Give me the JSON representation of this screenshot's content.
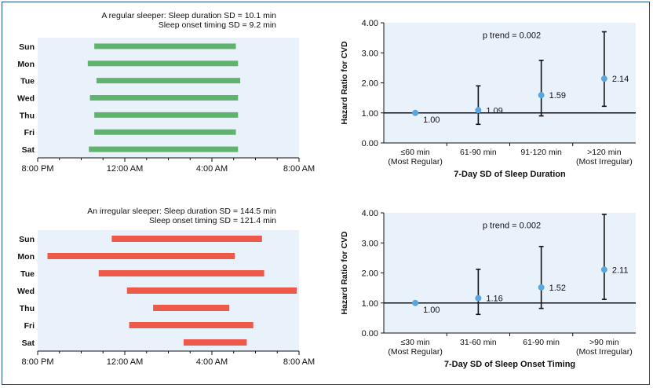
{
  "colors": {
    "panel_bg": "#e9f1fb",
    "regular_bar": "#5fb36c",
    "irregular_bar": "#ee5a4a",
    "point": "#5aa7e0",
    "frame": "#1f4e8c"
  },
  "chart_data": [
    {
      "type": "timeline",
      "title": [
        "A regular sleeper: Sleep duration SD = 10.1 min",
        "Sleep onset timing SD = 9.2 min"
      ],
      "categories": [
        "Sun",
        "Mon",
        "Tue",
        "Wed",
        "Thu",
        "Fri",
        "Sat"
      ],
      "x_ticks": [
        "8:00 PM",
        "12:00 AM",
        "4:00 AM",
        "8:00 AM"
      ],
      "x_range_hours": [
        0,
        12
      ],
      "intervals_hours_after_8pm": [
        [
          2.6,
          9.1
        ],
        [
          2.3,
          9.2
        ],
        [
          2.7,
          9.3
        ],
        [
          2.4,
          9.2
        ],
        [
          2.6,
          9.2
        ],
        [
          2.6,
          9.1
        ],
        [
          2.35,
          9.2
        ]
      ]
    },
    {
      "type": "timeline",
      "title": [
        "An irregular sleeper: Sleep duration SD = 144.5 min",
        "Sleep onset timing SD = 121.4 min"
      ],
      "categories": [
        "Sun",
        "Mon",
        "Tue",
        "Wed",
        "Thu",
        "Fri",
        "Sat"
      ],
      "x_ticks": [
        "8:00 PM",
        "12:00 AM",
        "4:00 AM",
        "8:00 AM"
      ],
      "x_range_hours": [
        0,
        12
      ],
      "intervals_hours_after_8pm": [
        [
          3.4,
          10.3
        ],
        [
          0.45,
          9.05
        ],
        [
          2.8,
          10.4
        ],
        [
          4.1,
          11.9
        ],
        [
          5.3,
          8.8
        ],
        [
          4.2,
          9.9
        ],
        [
          6.7,
          9.6
        ]
      ]
    },
    {
      "type": "errorbar",
      "ylabel": "Hazard Ratio for CVD",
      "xlabel": "7-Day SD of Sleep Duration",
      "annotation": "p trend = 0.002",
      "ylim": [
        0,
        4
      ],
      "y_ticks": [
        "0.00",
        "1.00",
        "2.00",
        "3.00",
        "4.00"
      ],
      "categories": [
        [
          "≤60 min",
          "(Most Regular)"
        ],
        [
          "61-90 min",
          ""
        ],
        [
          "91-120 min",
          ""
        ],
        [
          ">120 min",
          "(Most Irregular)"
        ]
      ],
      "values": [
        1.0,
        1.09,
        1.59,
        2.14
      ],
      "value_labels": [
        "1.00",
        "1.09",
        "1.59",
        "2.14"
      ],
      "ci_lower": [
        null,
        0.62,
        0.9,
        1.22
      ],
      "ci_upper": [
        null,
        1.9,
        2.75,
        3.7
      ],
      "reference_line": 1.0
    },
    {
      "type": "errorbar",
      "ylabel": "Hazard Ratio for CVD",
      "xlabel": "7-Day SD of Sleep Onset Timing",
      "annotation": "p trend = 0.002",
      "ylim": [
        0,
        4
      ],
      "y_ticks": [
        "0.00",
        "1.00",
        "2.00",
        "3.00",
        "4.00"
      ],
      "categories": [
        [
          "≤30 min",
          "(Most Regular)"
        ],
        [
          "31-60 min",
          ""
        ],
        [
          "61-90 min",
          ""
        ],
        [
          ">90 min",
          "(Most Irregular)"
        ]
      ],
      "values": [
        1.0,
        1.16,
        1.52,
        2.11
      ],
      "value_labels": [
        "1.00",
        "1.16",
        "1.52",
        "2.11"
      ],
      "ci_lower": [
        null,
        0.62,
        0.82,
        1.12
      ],
      "ci_upper": [
        null,
        2.12,
        2.88,
        3.95
      ],
      "reference_line": 1.0
    }
  ]
}
